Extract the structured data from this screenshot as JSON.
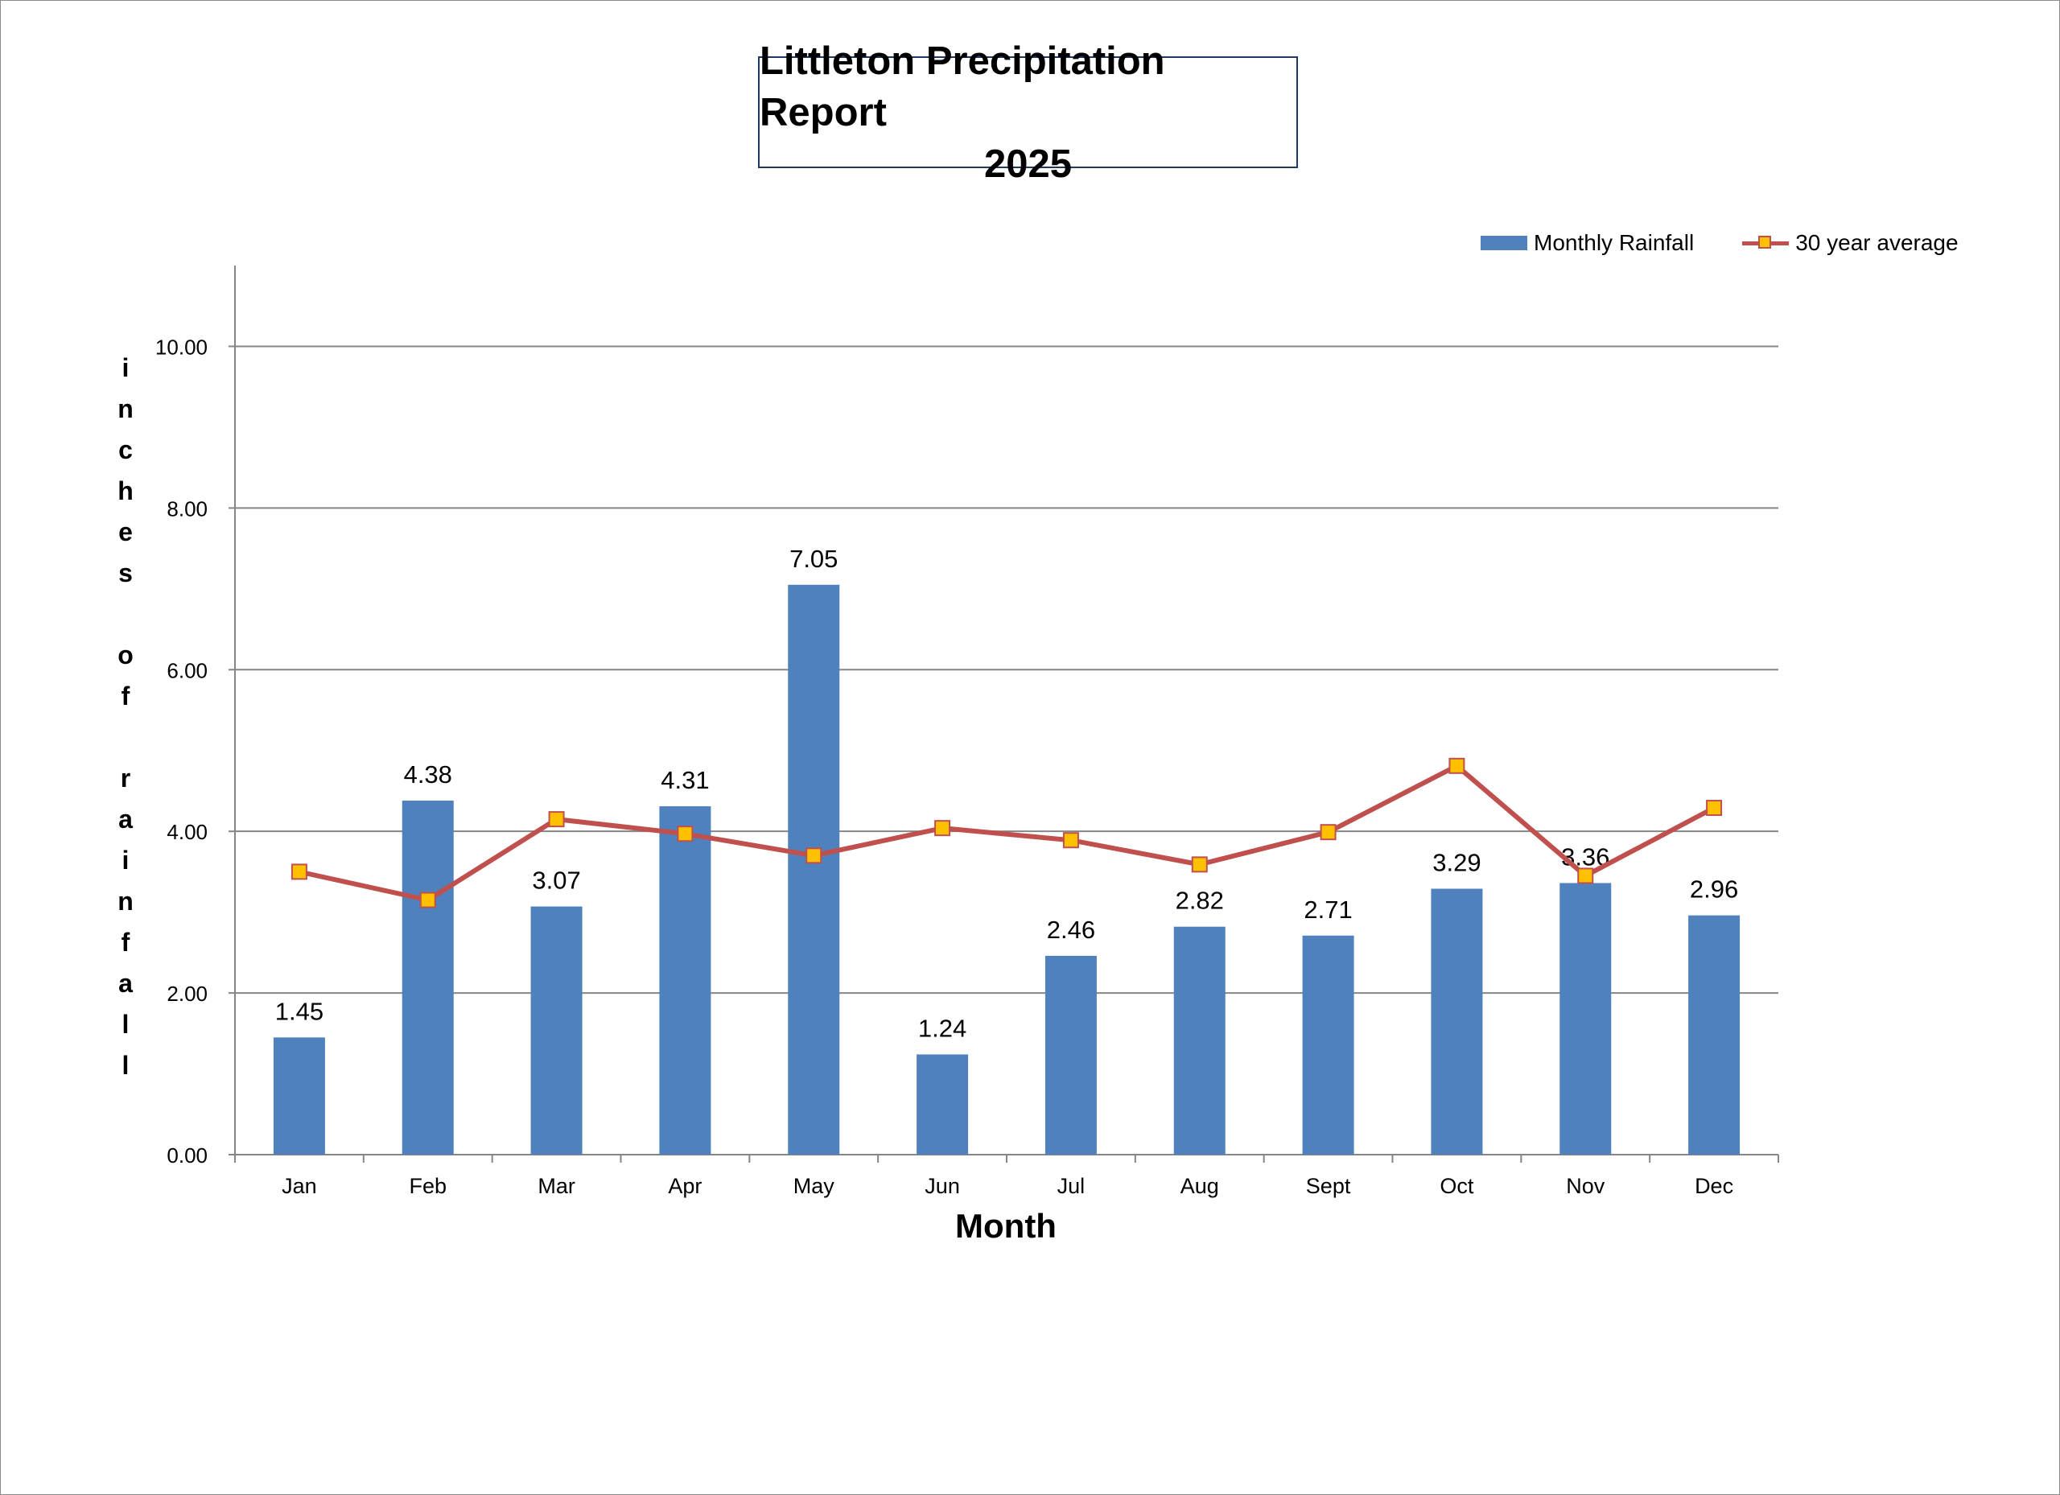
{
  "chart_data": {
    "type": "bar",
    "title_line1": "Littleton Precipitation Report",
    "title_line2": "2025",
    "xlabel": "Month",
    "ylabel": "inches of rainfall",
    "categories": [
      "Jan",
      "Feb",
      "Mar",
      "Apr",
      "May",
      "Jun",
      "Jul",
      "Aug",
      "Sept",
      "Oct",
      "Nov",
      "Dec"
    ],
    "ylim": [
      0,
      11
    ],
    "yticks": [
      0,
      2,
      4,
      6,
      8,
      10
    ],
    "ytick_labels": [
      "0.00",
      "2.00",
      "4.00",
      "6.00",
      "8.00",
      "10.00"
    ],
    "grid": true,
    "legend_position": "top-right",
    "series": [
      {
        "name": "Monthly Rainfall",
        "kind": "bar",
        "color": "#4f81bd",
        "values": [
          1.45,
          4.38,
          3.07,
          4.31,
          7.05,
          1.24,
          2.46,
          2.82,
          2.71,
          3.29,
          3.36,
          2.96
        ],
        "data_labels": [
          "1.45",
          "4.38",
          "3.07",
          "4.31",
          "7.05",
          "1.24",
          "2.46",
          "2.82",
          "2.71",
          "3.29",
          "3.36",
          "2.96"
        ]
      },
      {
        "name": "30 year average",
        "kind": "line",
        "color": "#c0504d",
        "marker_color": "#ffc000",
        "values": [
          3.5,
          3.15,
          4.15,
          3.97,
          3.7,
          4.04,
          3.89,
          3.59,
          3.99,
          4.81,
          3.45,
          4.29
        ]
      }
    ]
  }
}
